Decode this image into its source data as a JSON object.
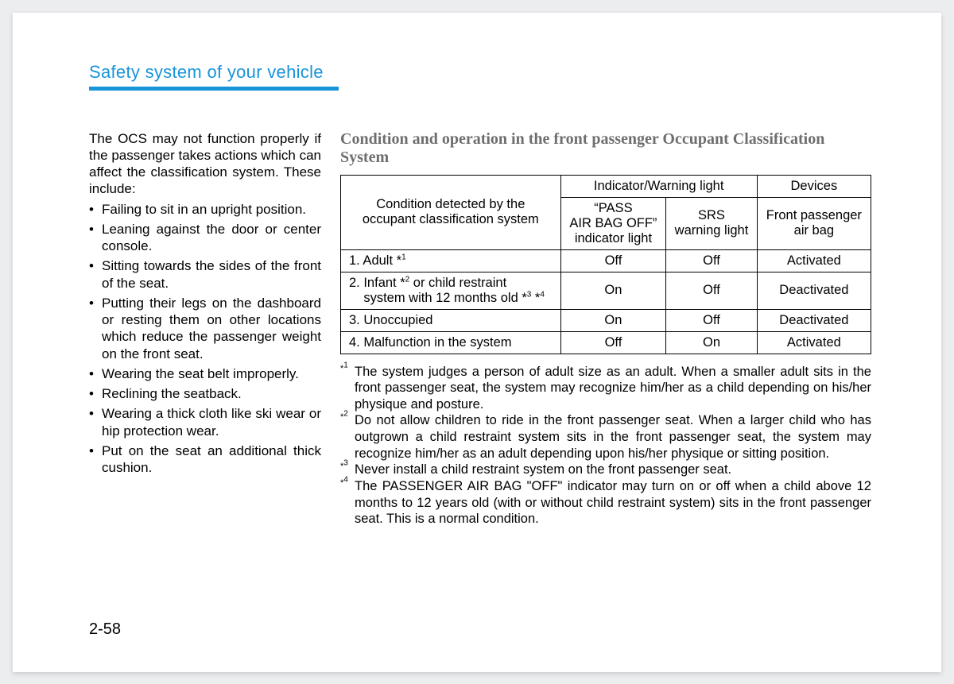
{
  "header": {
    "title": "Safety system of your vehicle",
    "accent_color": "#1894d8"
  },
  "left": {
    "intro": "The OCS may not function properly if the passenger takes actions which can affect the classification system. These include:",
    "bullets": [
      "Failing to sit in an upright position.",
      "Leaning against the door or center console.",
      "Sitting towards the sides of the front of the seat.",
      "Putting their legs on the dashboard or resting them on other locations which reduce the passenger weight on the front seat.",
      "Wearing the seat belt improperly.",
      "Reclining the seatback.",
      "Wearing a thick cloth like ski wear or hip protection wear.",
      "Put on the seat an additional thick cushion."
    ]
  },
  "right": {
    "table_title": "Condition and operation in the front passenger Occupant Classification System",
    "table": {
      "condition_header_line1": "Condition detected by the",
      "condition_header_line2": "occupant classification system",
      "group_indicator": "Indicator/Warning light",
      "group_devices": "Devices",
      "sub_pass_line1": "“PASS",
      "sub_pass_line2": "AIR BAG OFF”",
      "sub_pass_line3": "indicator light",
      "sub_srs_line1": "SRS",
      "sub_srs_line2": "warning light",
      "sub_dev_line1": "Front passenger",
      "sub_dev_line2": "air bag",
      "rows": [
        {
          "label_html": "1. Adult *<sup>1</sup>",
          "pass": "Off",
          "srs": "Off",
          "dev": "Activated"
        },
        {
          "label_html": "2. Infant *<sup>2</sup> or child restraint<br>&nbsp;&nbsp;&nbsp;&nbsp;system with 12 months old *<sup>3</sup> *<sup>4</sup>",
          "pass": "On",
          "srs": "Off",
          "dev": "Deactivated"
        },
        {
          "label_html": "3. Unoccupied",
          "pass": "On",
          "srs": "Off",
          "dev": "Deactivated"
        },
        {
          "label_html": "4. Malfunction in the system",
          "pass": "Off",
          "srs": "On",
          "dev": "Activated"
        }
      ]
    },
    "footnotes": [
      {
        "marker": "*1",
        "text": "The system judges a person of adult size as an adult. When a smaller adult sits in the front passenger seat, the system may recognize him/her as a child depending on his/her physique and posture."
      },
      {
        "marker": "*2",
        "text": "Do not allow children to ride in the front passenger seat. When a larger child who has outgrown a child restraint system sits in the front passenger seat, the system may recognize him/her as an adult depending upon his/her physique or sitting position."
      },
      {
        "marker": "*3",
        "text": "Never install a child restraint system on the front passenger seat."
      },
      {
        "marker": "*4",
        "text": "The PASSENGER AIR BAG \"OFF\" indicator may turn on or off when a child above 12 months to 12 years old (with or without child restraint system) sits in the front passenger seat. This is a normal condition."
      }
    ]
  },
  "page_number": "2-58"
}
